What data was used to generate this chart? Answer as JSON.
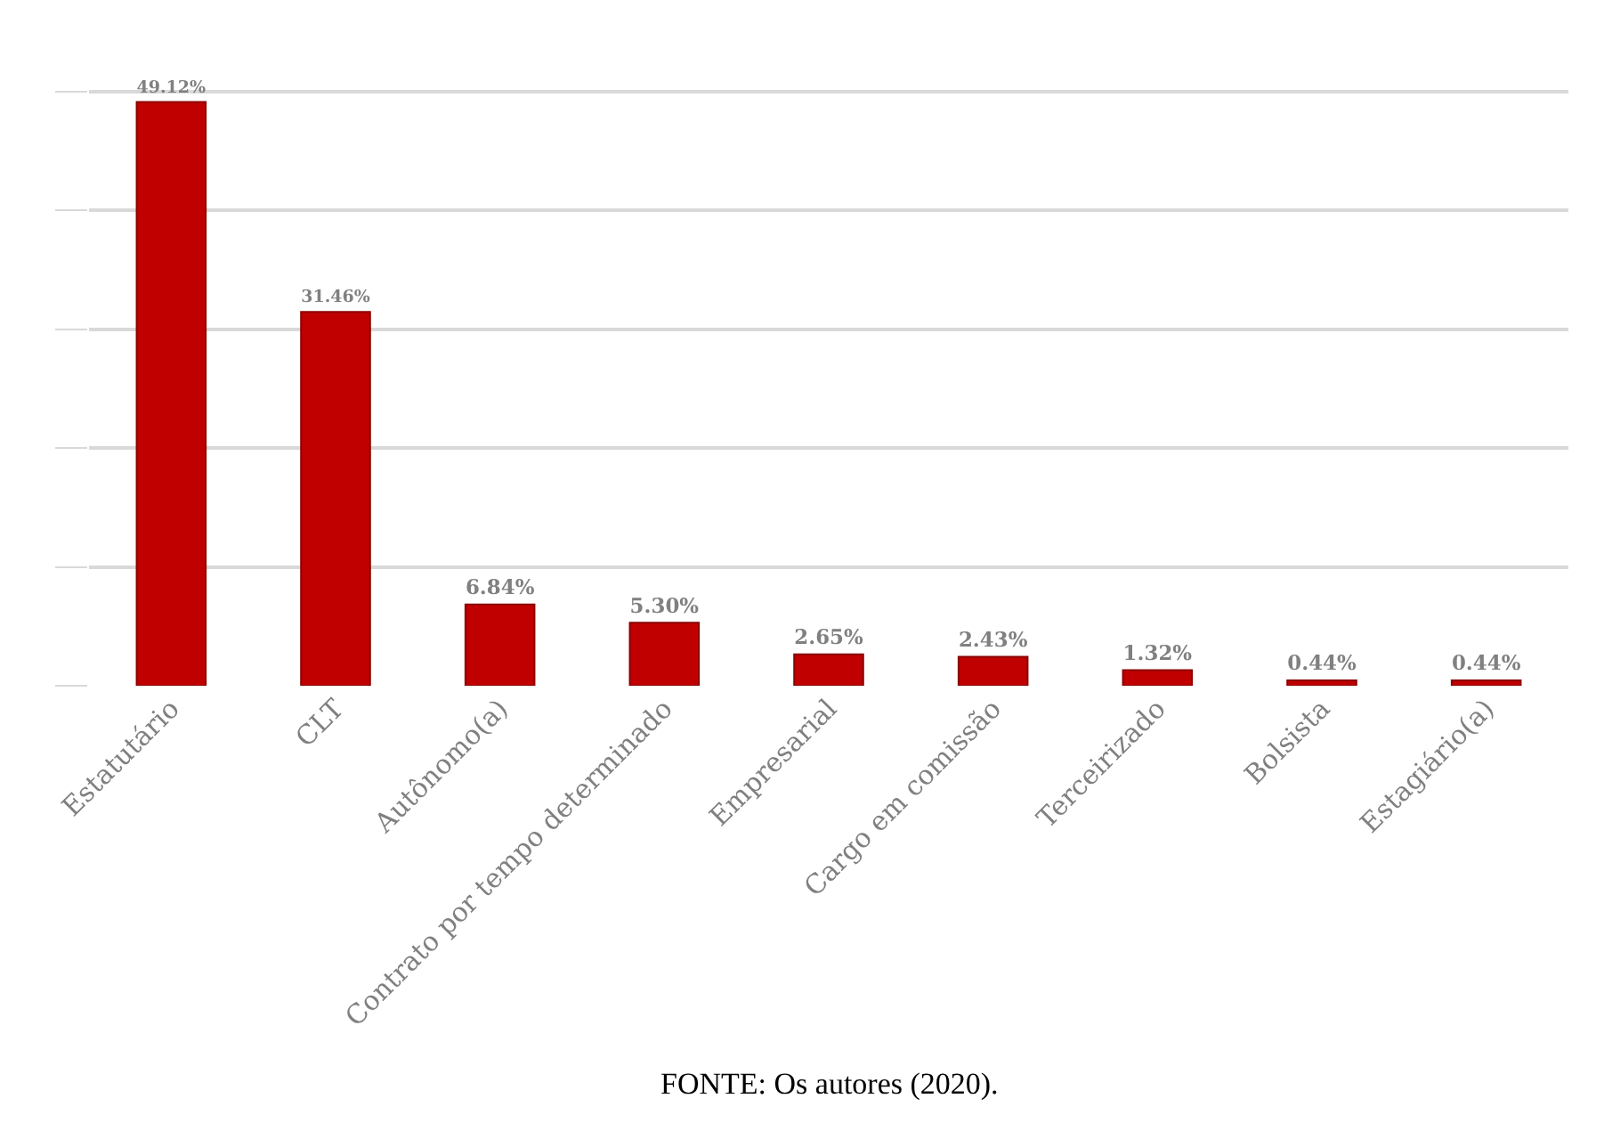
{
  "chart_data": {
    "type": "bar",
    "categories": [
      "Estatutário",
      "CLT",
      "Autônomo(a)",
      "Contrato por tempo determinado",
      "Empresarial",
      "Cargo em comissão",
      "Terceirizado",
      "Bolsista",
      "Estagiário(a)"
    ],
    "values": [
      49.12,
      31.46,
      6.84,
      5.3,
      2.65,
      2.43,
      1.32,
      0.44,
      0.44
    ],
    "value_labels": [
      "49.12%",
      "31.46%",
      "6.84%",
      "5.30%",
      "2.65%",
      "2.43%",
      "1.32%",
      "0.44%",
      "0.44%"
    ],
    "color": "#c00000",
    "grid": "y",
    "tick_labels": "x",
    "annotations": [
      "FONTE: Os autores (2020)."
    ]
  }
}
